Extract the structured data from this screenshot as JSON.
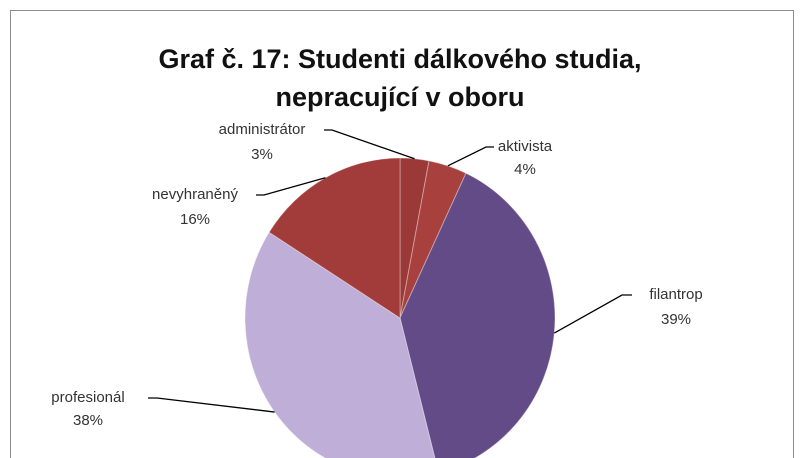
{
  "chart_data": {
    "type": "pie",
    "title": [
      "Graf č. 17: Studenti dálkového studia,",
      "nepracující v oboru"
    ],
    "categories": [
      "administrátor",
      "aktivista",
      "filantrop",
      "profesionál",
      "nevyhraněný"
    ],
    "values": [
      3,
      4,
      39,
      38,
      16
    ],
    "value_labels": [
      "3%",
      "4%",
      "39%",
      "38%",
      "16%"
    ],
    "colors": [
      "#9a3937",
      "#a8403d",
      "#624b87",
      "#bfaed8",
      "#a23c3a"
    ]
  }
}
